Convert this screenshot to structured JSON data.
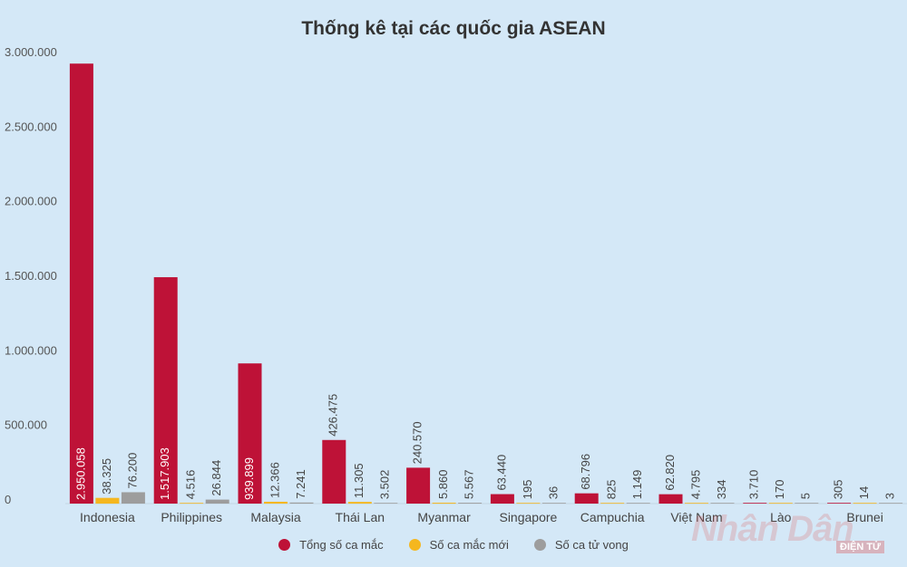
{
  "chart_data": {
    "type": "bar",
    "title": "Thống kê tại các quốc gia ASEAN",
    "xlabel": "",
    "ylabel": "",
    "ylim": [
      0,
      3000000
    ],
    "yticks": [
      "0",
      "500.000",
      "1.000.000",
      "1.500.000",
      "2.000.000",
      "2.500.000",
      "3.000.000"
    ],
    "grid": false,
    "legend_position": "bottom",
    "categories": [
      "Indonesia",
      "Philippines",
      "Malaysia",
      "Thái Lan",
      "Myanmar",
      "Singapore",
      "Campuchia",
      "Việt Nam",
      "Lào",
      "Brunei"
    ],
    "series": [
      {
        "name": "Tổng số ca mắc",
        "color": "#be1237",
        "values": [
          2950058,
          1517903,
          939899,
          426475,
          240570,
          63440,
          68796,
          62820,
          3710,
          305
        ],
        "labels": [
          "2.950.058",
          "1.517.903",
          "939.899",
          "426.475",
          "240.570",
          "63.440",
          "68.796",
          "62.820",
          "3.710",
          "305"
        ]
      },
      {
        "name": "Số ca mắc mới",
        "color": "#f5b71f",
        "values": [
          38325,
          4516,
          12366,
          11305,
          5860,
          195,
          825,
          4795,
          170,
          14
        ],
        "labels": [
          "38.325",
          "4.516",
          "12.366",
          "11.305",
          "5.860",
          "195",
          "825",
          "4.795",
          "170",
          "14"
        ]
      },
      {
        "name": "Số ca tử vong",
        "color": "#9d9d9d",
        "values": [
          76200,
          26844,
          7241,
          3502,
          5567,
          36,
          1149,
          334,
          5,
          3
        ],
        "labels": [
          "76.200",
          "26.844",
          "7.241",
          "3.502",
          "5.567",
          "36",
          "1.149",
          "334",
          "5",
          "3"
        ]
      }
    ]
  },
  "watermark": {
    "brand": "Nhân Dân",
    "badge": "ĐIỆN TỬ"
  }
}
